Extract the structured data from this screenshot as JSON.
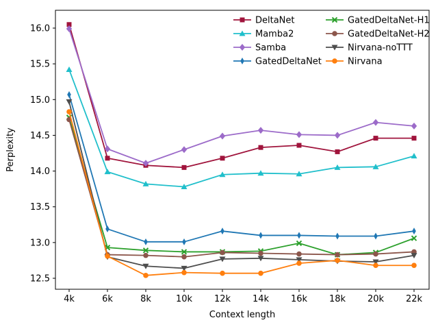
{
  "figure": {
    "title": "",
    "xlabel": "Context length",
    "ylabel": "Perplexity"
  },
  "chart_data": {
    "type": "line",
    "title": "",
    "xlabel": "Context length",
    "ylabel": "Perplexity",
    "categories": [
      "4k",
      "6k",
      "8k",
      "10k",
      "12k",
      "14k",
      "16k",
      "18k",
      "20k",
      "22k"
    ],
    "yticks": [
      12.5,
      13.0,
      13.5,
      14.0,
      14.5,
      15.0,
      15.5,
      16.0
    ],
    "ylim": [
      12.38,
      16.12
    ],
    "grid": false,
    "legend_position": "upper-center-inside, 2 columns, no frame",
    "series": [
      {
        "name": "DeltaNet",
        "color": "#a0143c",
        "marker": "square",
        "values": [
          16.05,
          14.18,
          14.08,
          14.05,
          14.18,
          14.33,
          14.36,
          14.27,
          14.46,
          14.46
        ]
      },
      {
        "name": "Mamba2",
        "color": "#20bfcb",
        "marker": "triangle-up",
        "values": [
          15.42,
          13.99,
          13.82,
          13.78,
          13.95,
          13.97,
          13.96,
          14.05,
          14.06,
          14.21
        ]
      },
      {
        "name": "Samba",
        "color": "#9c6bc9",
        "marker": "diamond",
        "values": [
          15.99,
          14.31,
          14.11,
          14.3,
          14.49,
          14.57,
          14.51,
          14.5,
          14.68,
          14.63
        ]
      },
      {
        "name": "GatedDeltaNet",
        "color": "#1f77b4",
        "marker": "thin-diamond",
        "values": [
          15.07,
          13.19,
          13.01,
          13.01,
          13.16,
          13.1,
          13.1,
          13.09,
          13.09,
          13.16
        ]
      },
      {
        "name": "GatedDeltaNet-H1",
        "color": "#2ca02c",
        "marker": "x",
        "values": [
          14.75,
          12.93,
          12.89,
          12.87,
          12.87,
          12.88,
          12.99,
          12.83,
          12.86,
          13.06
        ]
      },
      {
        "name": "GatedDeltaNet-H2",
        "color": "#8c564b",
        "marker": "circle",
        "values": [
          14.72,
          12.83,
          12.82,
          12.8,
          12.86,
          12.85,
          12.84,
          12.83,
          12.84,
          12.87
        ]
      },
      {
        "name": "Nirvana-noTTT",
        "color": "#4d4d4d",
        "marker": "triangle-down",
        "values": [
          14.97,
          12.8,
          12.67,
          12.64,
          12.77,
          12.78,
          12.76,
          12.74,
          12.73,
          12.82
        ]
      },
      {
        "name": "Nirvana",
        "color": "#ff7f0e",
        "marker": "circle",
        "values": [
          14.83,
          12.81,
          12.54,
          12.58,
          12.57,
          12.57,
          12.71,
          12.75,
          12.68,
          12.68
        ]
      }
    ],
    "legend_columns": [
      [
        "DeltaNet",
        "Mamba2",
        "Samba",
        "GatedDeltaNet"
      ],
      [
        "GatedDeltaNet-H1",
        "GatedDeltaNet-H2",
        "Nirvana-noTTT",
        "Nirvana"
      ]
    ]
  }
}
